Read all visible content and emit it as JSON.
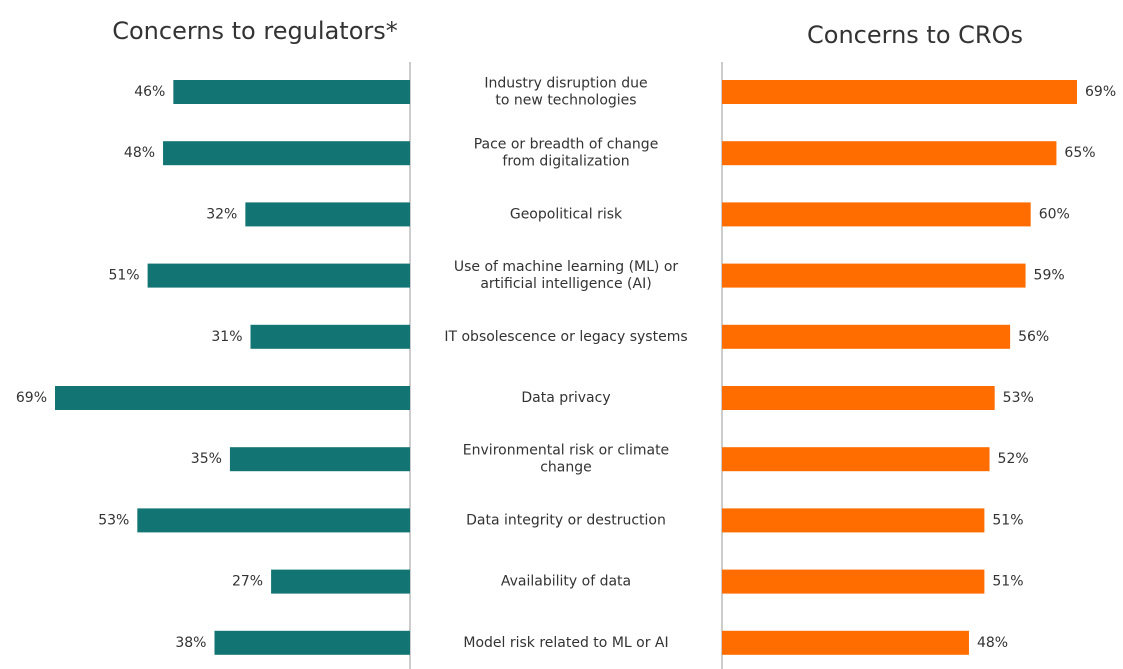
{
  "chart_data": {
    "type": "butterfly",
    "categories": [
      [
        "Industry disruption due",
        "to new technologies"
      ],
      [
        "Pace or breadth of change",
        "from digitalization"
      ],
      [
        "Geopolitical risk"
      ],
      [
        "Use of machine learning (ML) or",
        "artificial intelligence (AI)"
      ],
      [
        "IT obsolescence or legacy systems"
      ],
      [
        "Data privacy"
      ],
      [
        "Environmental risk or climate",
        "change"
      ],
      [
        "Data integrity or destruction"
      ],
      [
        "Availability of data"
      ],
      [
        "Model risk related to ML or AI"
      ]
    ],
    "series": [
      {
        "name": "Concerns to regulators*",
        "color": "#127473",
        "values": [
          46,
          48,
          32,
          51,
          31,
          69,
          35,
          53,
          27,
          38
        ],
        "value_labels": [
          "46%",
          "48%",
          "32%",
          "51%",
          "31%",
          "69%",
          "35%",
          "53%",
          "27%",
          "38%"
        ]
      },
      {
        "name": "Concerns to CROs",
        "color": "#ff6d00",
        "values": [
          69,
          65,
          60,
          59,
          56,
          53,
          52,
          51,
          51,
          48
        ],
        "value_labels": [
          "69%",
          "65%",
          "60%",
          "59%",
          "56%",
          "53%",
          "52%",
          "51%",
          "51%",
          "48%"
        ]
      }
    ],
    "xlim": [
      0,
      69
    ]
  }
}
